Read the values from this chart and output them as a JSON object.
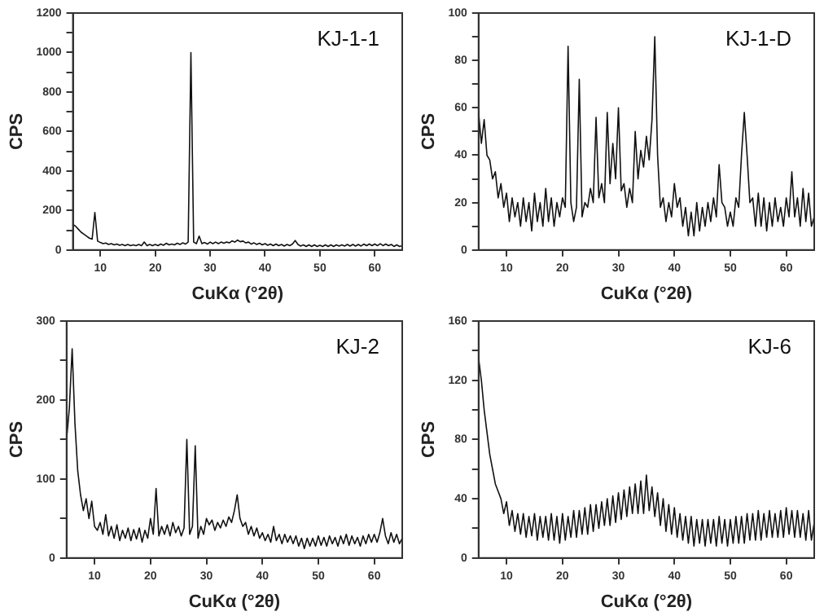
{
  "chart_data": [
    {
      "type": "line",
      "title": "KJ-1-1",
      "xlabel": "CuKα (°2θ)",
      "ylabel": "CPS",
      "xlim": [
        5,
        65
      ],
      "xticks": [
        10,
        20,
        30,
        40,
        50,
        60
      ],
      "ylim": [
        0,
        1200
      ],
      "yticks": [
        0,
        {
          "value": 100,
          "label": null
        },
        200,
        {
          "value": 300,
          "label": null
        },
        400,
        {
          "value": 500,
          "label": null
        },
        600,
        {
          "value": 700,
          "label": null
        },
        800,
        {
          "value": 900,
          "label": null
        },
        1000,
        {
          "value": 1100,
          "label": null
        },
        1200
      ],
      "grid": false,
      "legend": false,
      "marker": "none",
      "x": [
        5,
        5.5,
        6,
        6.5,
        7,
        7.5,
        8,
        8.5,
        9,
        9.5,
        10,
        10.5,
        11,
        11.5,
        12,
        12.5,
        13,
        13.5,
        14,
        14.5,
        15,
        15.5,
        16,
        16.5,
        17,
        17.5,
        18,
        18.5,
        19,
        19.5,
        20,
        20.5,
        21,
        21.5,
        22,
        22.5,
        23,
        23.5,
        24,
        24.5,
        25,
        25.5,
        26,
        26.5,
        27,
        27.5,
        28,
        28.5,
        29,
        29.5,
        30,
        30.5,
        31,
        31.5,
        32,
        32.5,
        33,
        33.5,
        34,
        34.5,
        35,
        35.5,
        36,
        36.5,
        37,
        37.5,
        38,
        38.5,
        39,
        39.5,
        40,
        40.5,
        41,
        41.5,
        42,
        42.5,
        43,
        43.5,
        44,
        44.5,
        45,
        45.5,
        46,
        46.5,
        47,
        47.5,
        48,
        48.5,
        49,
        49.5,
        50,
        50.5,
        51,
        51.5,
        52,
        52.5,
        53,
        53.5,
        54,
        54.5,
        55,
        55.5,
        56,
        56.5,
        57,
        57.5,
        58,
        58.5,
        59,
        59.5,
        60,
        60.5,
        61,
        61.5,
        62,
        62.5,
        63,
        63.5,
        64,
        64.5,
        65
      ],
      "series": [
        {
          "color": "#111111",
          "values": [
            130,
            120,
            105,
            90,
            80,
            70,
            60,
            55,
            190,
            45,
            38,
            32,
            35,
            28,
            32,
            26,
            30,
            24,
            28,
            22,
            28,
            22,
            26,
            22,
            28,
            22,
            40,
            22,
            28,
            22,
            28,
            22,
            30,
            24,
            34,
            26,
            30,
            26,
            34,
            28,
            36,
            30,
            40,
            1000,
            40,
            32,
            70,
            32,
            38,
            30,
            40,
            32,
            40,
            32,
            40,
            34,
            40,
            36,
            46,
            40,
            50,
            42,
            45,
            36,
            40,
            30,
            36,
            28,
            34,
            26,
            32,
            24,
            30,
            22,
            30,
            22,
            28,
            20,
            28,
            22,
            30,
            48,
            28,
            20,
            26,
            18,
            26,
            18,
            26,
            18,
            24,
            18,
            26,
            18,
            26,
            18,
            26,
            20,
            26,
            20,
            28,
            20,
            28,
            20,
            28,
            20,
            30,
            22,
            30,
            22,
            30,
            22,
            32,
            22,
            30,
            22,
            28,
            18,
            26,
            18,
            22
          ]
        }
      ]
    },
    {
      "type": "line",
      "title": "KJ-1-D",
      "xlabel": "CuKα (°2θ)",
      "ylabel": "CPS",
      "xlim": [
        5,
        65
      ],
      "xticks": [
        10,
        20,
        30,
        40,
        50,
        60
      ],
      "ylim": [
        0,
        100
      ],
      "yticks": [
        0,
        {
          "value": 10,
          "label": null
        },
        20,
        {
          "value": 30,
          "label": null
        },
        40,
        {
          "value": 50,
          "label": null
        },
        60,
        {
          "value": 70,
          "label": null
        },
        80,
        {
          "value": 90,
          "label": null
        },
        100
      ],
      "grid": false,
      "legend": false,
      "marker": "none",
      "x": [
        5,
        5.5,
        6,
        6.5,
        7,
        7.5,
        8,
        8.5,
        9,
        9.5,
        10,
        10.5,
        11,
        11.5,
        12,
        12.5,
        13,
        13.5,
        14,
        14.5,
        15,
        15.5,
        16,
        16.5,
        17,
        17.5,
        18,
        18.5,
        19,
        19.5,
        20,
        20.5,
        21,
        21.5,
        22,
        22.5,
        23,
        23.5,
        24,
        24.5,
        25,
        25.5,
        26,
        26.5,
        27,
        27.5,
        28,
        28.5,
        29,
        29.5,
        30,
        30.5,
        31,
        31.5,
        32,
        32.5,
        33,
        33.5,
        34,
        34.5,
        35,
        35.5,
        36,
        36.5,
        37,
        37.5,
        38,
        38.5,
        39,
        39.5,
        40,
        40.5,
        41,
        41.5,
        42,
        42.5,
        43,
        43.5,
        44,
        44.5,
        45,
        45.5,
        46,
        46.5,
        47,
        47.5,
        48,
        48.5,
        49,
        49.5,
        50,
        50.5,
        51,
        51.5,
        52,
        52.5,
        53,
        53.5,
        54,
        54.5,
        55,
        55.5,
        56,
        56.5,
        57,
        57.5,
        58,
        58.5,
        59,
        59.5,
        60,
        60.5,
        61,
        61.5,
        62,
        62.5,
        63,
        63.5,
        64,
        64.5,
        65
      ],
      "series": [
        {
          "color": "#111111",
          "values": [
            58,
            45,
            55,
            40,
            38,
            30,
            33,
            22,
            28,
            18,
            24,
            12,
            22,
            14,
            20,
            10,
            22,
            12,
            20,
            8,
            24,
            12,
            20,
            10,
            26,
            12,
            22,
            10,
            20,
            14,
            22,
            18,
            86,
            20,
            12,
            18,
            72,
            14,
            20,
            18,
            26,
            20,
            56,
            22,
            28,
            20,
            58,
            28,
            45,
            30,
            60,
            25,
            28,
            18,
            26,
            20,
            50,
            30,
            42,
            35,
            48,
            38,
            55,
            90,
            40,
            18,
            22,
            12,
            20,
            14,
            28,
            18,
            22,
            10,
            18,
            6,
            16,
            6,
            20,
            8,
            18,
            10,
            20,
            12,
            22,
            14,
            36,
            20,
            18,
            10,
            16,
            10,
            22,
            18,
            40,
            58,
            40,
            20,
            22,
            10,
            24,
            10,
            22,
            8,
            20,
            10,
            22,
            12,
            18,
            10,
            22,
            14,
            33,
            14,
            22,
            10,
            26,
            12,
            24,
            10,
            14
          ]
        }
      ]
    },
    {
      "type": "line",
      "title": "KJ-2",
      "xlabel": "CuKα (°2θ)",
      "ylabel": "CPS",
      "xlim": [
        5,
        65
      ],
      "xticks": [
        10,
        20,
        30,
        40,
        50,
        60
      ],
      "ylim": [
        0,
        300
      ],
      "yticks": [
        0,
        {
          "value": 50,
          "label": null
        },
        100,
        {
          "value": 150,
          "label": null
        },
        200,
        {
          "value": 250,
          "label": null
        },
        300
      ],
      "grid": false,
      "legend": false,
      "marker": "none",
      "x": [
        5,
        5.5,
        6,
        6.5,
        7,
        7.5,
        8,
        8.5,
        9,
        9.5,
        10,
        10.5,
        11,
        11.5,
        12,
        12.5,
        13,
        13.5,
        14,
        14.5,
        15,
        15.5,
        16,
        16.5,
        17,
        17.5,
        18,
        18.5,
        19,
        19.5,
        20,
        20.5,
        21,
        21.5,
        22,
        22.5,
        23,
        23.5,
        24,
        24.5,
        25,
        25.5,
        26,
        26.5,
        27,
        27.5,
        28,
        28.5,
        29,
        29.5,
        30,
        30.5,
        31,
        31.5,
        32,
        32.5,
        33,
        33.5,
        34,
        34.5,
        35,
        35.5,
        36,
        36.5,
        37,
        37.5,
        38,
        38.5,
        39,
        39.5,
        40,
        40.5,
        41,
        41.5,
        42,
        42.5,
        43,
        43.5,
        44,
        44.5,
        45,
        45.5,
        46,
        46.5,
        47,
        47.5,
        48,
        48.5,
        49,
        49.5,
        50,
        50.5,
        51,
        51.5,
        52,
        52.5,
        53,
        53.5,
        54,
        54.5,
        55,
        55.5,
        56,
        56.5,
        57,
        57.5,
        58,
        58.5,
        59,
        59.5,
        60,
        60.5,
        61,
        61.5,
        62,
        62.5,
        63,
        63.5,
        64,
        64.5,
        65
      ],
      "series": [
        {
          "color": "#111111",
          "values": [
            150,
            190,
            265,
            170,
            110,
            80,
            60,
            75,
            50,
            72,
            40,
            35,
            45,
            30,
            55,
            28,
            40,
            25,
            42,
            22,
            35,
            25,
            38,
            22,
            36,
            24,
            38,
            20,
            35,
            25,
            50,
            30,
            88,
            28,
            40,
            30,
            42,
            28,
            45,
            32,
            40,
            28,
            38,
            150,
            30,
            40,
            142,
            25,
            40,
            30,
            50,
            42,
            48,
            35,
            45,
            38,
            48,
            40,
            52,
            45,
            60,
            80,
            50,
            40,
            45,
            30,
            40,
            28,
            38,
            25,
            32,
            22,
            30,
            20,
            40,
            22,
            30,
            18,
            30,
            20,
            28,
            18,
            28,
            15,
            25,
            12,
            25,
            15,
            25,
            15,
            28,
            16,
            26,
            15,
            28,
            18,
            26,
            15,
            28,
            18,
            30,
            16,
            28,
            18,
            26,
            15,
            28,
            18,
            30,
            20,
            30,
            20,
            32,
            50,
            28,
            18,
            32,
            20,
            30,
            18,
            25
          ]
        }
      ]
    },
    {
      "type": "line",
      "title": "KJ-6",
      "xlabel": "CuKα (°2θ)",
      "ylabel": "CPS",
      "xlim": [
        5,
        65
      ],
      "xticks": [
        10,
        20,
        30,
        40,
        50,
        60
      ],
      "ylim": [
        0,
        160
      ],
      "yticks": [
        0,
        {
          "value": 20,
          "label": null
        },
        40,
        {
          "value": 60,
          "label": null
        },
        80,
        {
          "value": 100,
          "label": null
        },
        120,
        {
          "value": 140,
          "label": null
        },
        160
      ],
      "grid": false,
      "legend": false,
      "marker": "none",
      "x": [
        5,
        5.5,
        6,
        6.5,
        7,
        7.5,
        8,
        8.5,
        9,
        9.5,
        10,
        10.5,
        11,
        11.5,
        12,
        12.5,
        13,
        13.5,
        14,
        14.5,
        15,
        15.5,
        16,
        16.5,
        17,
        17.5,
        18,
        18.5,
        19,
        19.5,
        20,
        20.5,
        21,
        21.5,
        22,
        22.5,
        23,
        23.5,
        24,
        24.5,
        25,
        25.5,
        26,
        26.5,
        27,
        27.5,
        28,
        28.5,
        29,
        29.5,
        30,
        30.5,
        31,
        31.5,
        32,
        32.5,
        33,
        33.5,
        34,
        34.5,
        35,
        35.5,
        36,
        36.5,
        37,
        37.5,
        38,
        38.5,
        39,
        39.5,
        40,
        40.5,
        41,
        41.5,
        42,
        42.5,
        43,
        43.5,
        44,
        44.5,
        45,
        45.5,
        46,
        46.5,
        47,
        47.5,
        48,
        48.5,
        49,
        49.5,
        50,
        50.5,
        51,
        51.5,
        52,
        52.5,
        53,
        53.5,
        54,
        54.5,
        55,
        55.5,
        56,
        56.5,
        57,
        57.5,
        58,
        58.5,
        59,
        59.5,
        60,
        60.5,
        61,
        61.5,
        62,
        62.5,
        63,
        63.5,
        64,
        64.5,
        65
      ],
      "series": [
        {
          "color": "#111111",
          "values": [
            135,
            120,
            100,
            85,
            70,
            60,
            50,
            45,
            40,
            30,
            38,
            22,
            32,
            18,
            30,
            16,
            30,
            14,
            28,
            15,
            30,
            12,
            28,
            14,
            28,
            12,
            30,
            12,
            28,
            10,
            30,
            12,
            28,
            14,
            32,
            14,
            32,
            16,
            34,
            16,
            36,
            18,
            36,
            20,
            38,
            22,
            40,
            22,
            42,
            24,
            44,
            26,
            46,
            28,
            48,
            30,
            50,
            30,
            52,
            30,
            56,
            32,
            48,
            28,
            44,
            22,
            40,
            18,
            36,
            16,
            34,
            14,
            30,
            12,
            28,
            10,
            28,
            8,
            26,
            10,
            26,
            8,
            26,
            10,
            26,
            8,
            28,
            10,
            26,
            8,
            26,
            10,
            28,
            10,
            28,
            10,
            30,
            12,
            30,
            12,
            32,
            12,
            30,
            14,
            32,
            14,
            30,
            14,
            32,
            14,
            34,
            16,
            32,
            14,
            32,
            14,
            30,
            12,
            32,
            12,
            24
          ]
        }
      ]
    }
  ]
}
